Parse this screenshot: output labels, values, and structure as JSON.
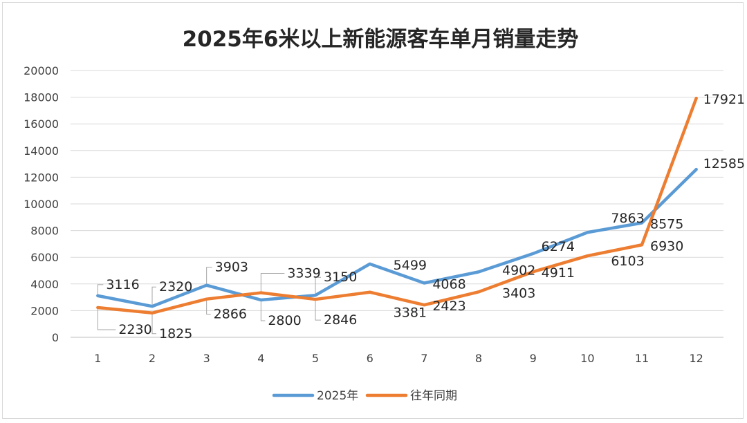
{
  "chart_data": {
    "type": "line",
    "title": "2025年6米以上新能源客车单月销量走势",
    "xlabel": "",
    "ylabel": "",
    "x": [
      1,
      2,
      3,
      4,
      5,
      6,
      7,
      8,
      9,
      10,
      11,
      12
    ],
    "x_tick_labels": [
      "1",
      "2",
      "3",
      "4",
      "5",
      "6",
      "7",
      "8",
      "9",
      "10",
      "11",
      "12"
    ],
    "ylim": [
      0,
      20000
    ],
    "y_tick_labels": [
      "0",
      "2000",
      "4000",
      "6000",
      "8000",
      "10000",
      "12000",
      "14000",
      "16000",
      "18000",
      "20000"
    ],
    "grid": true,
    "legend_position": "bottom",
    "series": [
      {
        "name": "2025年",
        "color": "#5b9bd5",
        "values": [
          3116,
          2320,
          3903,
          2800,
          3150,
          5499,
          4068,
          4902,
          6274,
          7863,
          8575,
          12585
        ],
        "value_labels": [
          "3116",
          "2320",
          "3903",
          "2800",
          "3150",
          "5499",
          "4068",
          "4902",
          "6274",
          "7863",
          "8575",
          "12585"
        ]
      },
      {
        "name": "往年同期",
        "color": "#ed7d31",
        "values": [
          2230,
          1825,
          2866,
          3339,
          2846,
          3381,
          2423,
          3403,
          4911,
          6103,
          6930,
          17921
        ],
        "value_labels": [
          "2230",
          "1825",
          "2866",
          "3339",
          "2846",
          "3381",
          "2423",
          "3403",
          "4911",
          "6103",
          "6930",
          "17921"
        ]
      }
    ]
  }
}
